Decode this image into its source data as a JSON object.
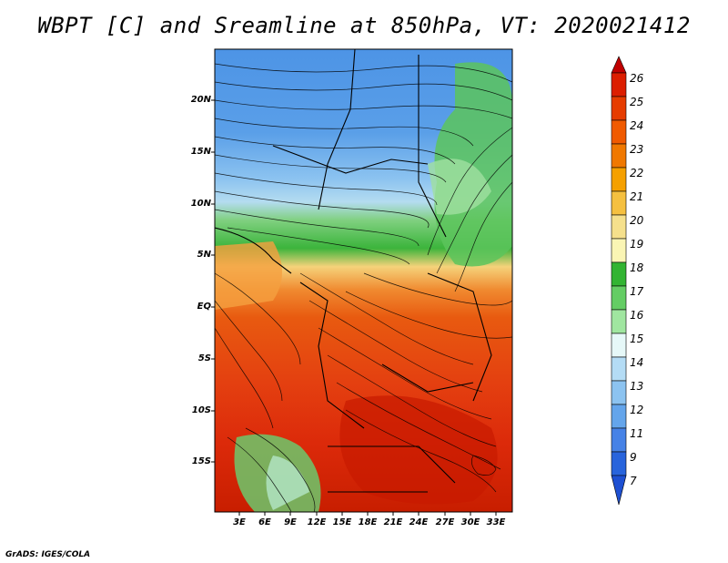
{
  "title": "WBPT [C] and Sreamline at 850hPa, VT: 2020021412",
  "footer": "GrADS: IGES/COLA",
  "latitude_labels": [
    "20N",
    "15N",
    "10N",
    "5N",
    "EQ",
    "5S",
    "10S",
    "15S"
  ],
  "longitude_labels": [
    "3E",
    "6E",
    "9E",
    "12E",
    "15E",
    "18E",
    "21E",
    "24E",
    "27E",
    "30E",
    "33E"
  ],
  "colorbar": {
    "labels": [
      "26",
      "25",
      "24",
      "23",
      "22",
      "21",
      "20",
      "19",
      "18",
      "17",
      "16",
      "15",
      "14",
      "13",
      "12",
      "11",
      "9",
      "7"
    ],
    "colors": [
      "#c00000",
      "#dc1e00",
      "#e63c00",
      "#f05a00",
      "#f07800",
      "#f5a000",
      "#f5c040",
      "#f5e08c",
      "#faf5b4",
      "#32b432",
      "#64cd64",
      "#a0e6a0",
      "#e6f8f8",
      "#b4dcf5",
      "#8cc3f0",
      "#64a5eb",
      "#4682e6",
      "#2864dc",
      "#1e50d2"
    ]
  }
}
